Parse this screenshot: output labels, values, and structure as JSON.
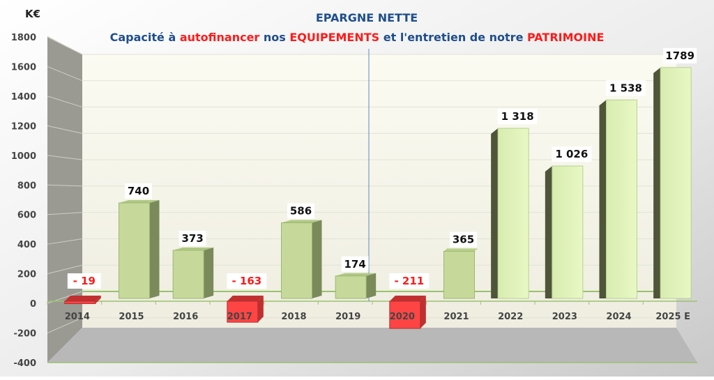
{
  "chart_data": {
    "type": "bar",
    "title": "EPARGNE NETTE",
    "subtitle_parts": [
      {
        "text": "Capacité à ",
        "color": "#1f4e8c"
      },
      {
        "text": "autofinancer",
        "color": "#ff1a1a"
      },
      {
        "text": " nos ",
        "color": "#1f4e8c"
      },
      {
        "text": "EQUIPEMENTS",
        "color": "#ff1a1a"
      },
      {
        "text": "  et l'entretien de notre ",
        "color": "#1f4e8c"
      },
      {
        "text": "PATRIMOINE",
        "color": "#ff1a1a"
      }
    ],
    "ylabel": "K€",
    "ylim": [
      -400,
      1800
    ],
    "yticks": [
      -400,
      -200,
      0,
      200,
      400,
      600,
      800,
      1000,
      1200,
      1400,
      1600,
      1800
    ],
    "categories": [
      "2014",
      "2015",
      "2016",
      "2017",
      "2018",
      "2019",
      "2020",
      "2021",
      "2022",
      "2023",
      "2024",
      "2025 E"
    ],
    "values": [
      -19,
      740,
      373,
      -163,
      586,
      174,
      -211,
      365,
      1318,
      1026,
      1538,
      1789
    ],
    "data_labels": [
      "- 19",
      "740",
      "373",
      "- 163",
      "586",
      "174",
      "- 211",
      "365",
      "1 318",
      "1 026",
      "1 538",
      "1789"
    ],
    "divider_after": "2019",
    "grid": true,
    "colors": {
      "positive": "#c6d99a",
      "positive_side": "#7a8a5a",
      "positive_light": "#e4f5bd",
      "positive_dark_side": "#4e5538",
      "negative": "#ff4444",
      "negative_side": "#c03030",
      "negative_label": "#ff1a1a",
      "title": "#1f4e8c"
    }
  }
}
